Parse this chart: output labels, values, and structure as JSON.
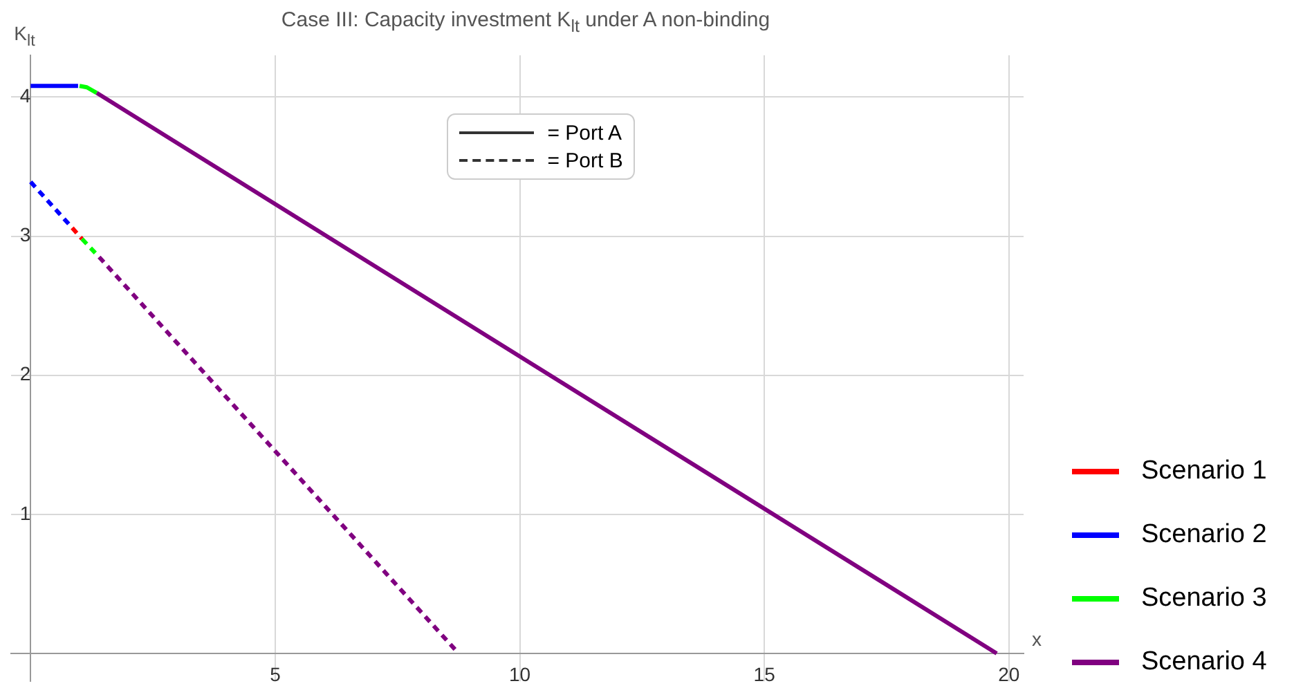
{
  "chart_data": {
    "type": "line",
    "title": "Case III: Capacity investment K$_{lt}$ under A non-binding",
    "xlabel": "x",
    "ylabel": "K$_{lt}$",
    "xlim": [
      -0.4,
      20.3
    ],
    "ylim": [
      -0.2,
      4.3
    ],
    "xticks": [
      5,
      10,
      15,
      20
    ],
    "yticks": [
      1,
      2,
      3,
      4
    ],
    "grid": true,
    "legend": "right",
    "marker": "none",
    "annotations": [
      "= Port A",
      "= Port B"
    ],
    "series": [
      {
        "name": "Scenario 1",
        "color": "#ff0000",
        "x": [
          0.85,
          1.05
        ],
        "values": [
          3.06,
          2.98
        ],
        "line_style": "dashed"
      },
      {
        "name": "Scenario 2",
        "color": "#0000ff",
        "x": [
          0,
          0.97
        ],
        "values": [
          4.08,
          4.08
        ],
        "line_style": "solid"
      },
      {
        "name": "Scenario 3",
        "color": "#00ff00",
        "x": [
          1.05,
          1.4
        ],
        "values": [
          2.98,
          2.85
        ],
        "line_style": "dashed"
      },
      {
        "name": "Scenario 4",
        "color": "#800080",
        "x": [
          1.35,
          19.75
        ],
        "values": [
          4.03,
          0
        ],
        "line_style": "solid"
      },
      {
        "color": "#0000ff",
        "x": [
          0,
          0.85
        ],
        "values": [
          3.39,
          3.06
        ],
        "line_style": "dashed"
      },
      {
        "color": "#00ff00",
        "x": [
          1.0,
          1.15,
          1.35
        ],
        "values": [
          4.08,
          4.07,
          4.03
        ],
        "line_style": "solid"
      },
      {
        "color": "#800080",
        "x": [
          1.4,
          8.75
        ],
        "values": [
          2.85,
          0
        ],
        "line_style": "dashed"
      }
    ]
  }
}
